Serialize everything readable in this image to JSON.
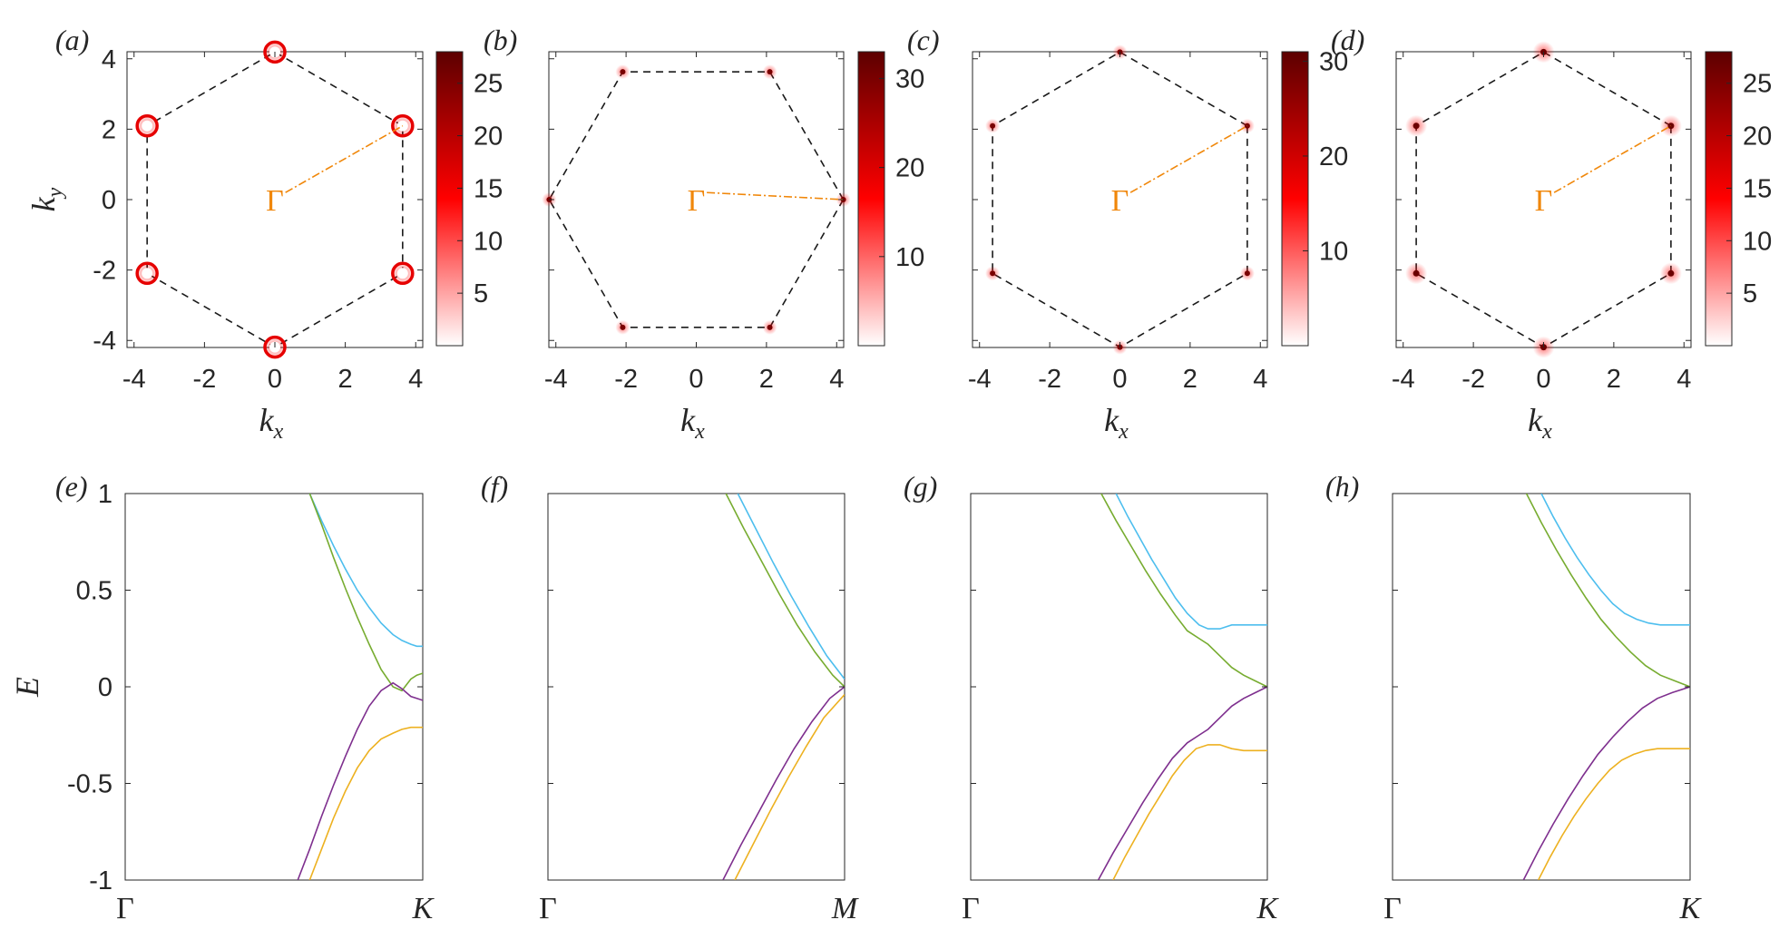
{
  "chart_data": [
    {
      "panel": "(a)",
      "type": "heatmap",
      "xlabel": "k_x",
      "ylabel": "k_y",
      "xlim": [
        -4.2,
        4.2
      ],
      "ylim": [
        -4.2,
        4.2
      ],
      "xticks": [
        "-4",
        "-2",
        "0",
        "2",
        "4"
      ],
      "yticks": [
        "4",
        "2",
        "0",
        "-2",
        "-4"
      ],
      "colorbar": {
        "min": 0,
        "max": 28,
        "ticks": [
          "25",
          "20",
          "15",
          "10",
          "5"
        ],
        "tick_values": [
          25,
          20,
          15,
          10,
          5
        ]
      },
      "brillouin_zone": "hexagon",
      "path_label": "Γ",
      "path_to": "K",
      "hotspot_style": "ring"
    },
    {
      "panel": "(b)",
      "type": "heatmap",
      "xlabel": "k_x",
      "ylabel": "",
      "xlim": [
        -4.2,
        4.2
      ],
      "ylim": [
        -4.2,
        4.2
      ],
      "xticks": [
        "-4",
        "-2",
        "0",
        "2",
        "4"
      ],
      "colorbar": {
        "min": 0,
        "max": 33,
        "ticks": [
          "30",
          "20",
          "10"
        ],
        "tick_values": [
          30,
          20,
          10
        ]
      },
      "brillouin_zone": "hexagon-rotated",
      "path_label": "Γ",
      "path_to": "M",
      "hotspot_style": "dot"
    },
    {
      "panel": "(c)",
      "type": "heatmap",
      "xlabel": "k_x",
      "ylabel": "",
      "xlim": [
        -4.2,
        4.2
      ],
      "ylim": [
        -4.2,
        4.2
      ],
      "xticks": [
        "-4",
        "-2",
        "0",
        "2",
        "4"
      ],
      "colorbar": {
        "min": 0,
        "max": 31,
        "ticks": [
          "30",
          "20",
          "10"
        ],
        "tick_values": [
          30,
          20,
          10
        ]
      },
      "brillouin_zone": "hexagon",
      "path_label": "Γ",
      "path_to": "K",
      "hotspot_style": "dot"
    },
    {
      "panel": "(d)",
      "type": "heatmap",
      "xlabel": "k_x",
      "ylabel": "",
      "xlim": [
        -4.2,
        4.2
      ],
      "ylim": [
        -4.2,
        4.2
      ],
      "xticks": [
        "-4",
        "-2",
        "0",
        "2",
        "4"
      ],
      "colorbar": {
        "min": 0,
        "max": 28,
        "ticks": [
          "25",
          "20",
          "15",
          "10",
          "5"
        ],
        "tick_values": [
          25,
          20,
          15,
          10,
          5
        ]
      },
      "brillouin_zone": "hexagon",
      "path_label": "Γ",
      "path_to": "K",
      "hotspot_style": "dot-glow"
    },
    {
      "panel": "(e)",
      "type": "line",
      "ylabel": "E",
      "ylim": [
        -1,
        1
      ],
      "yticks": [
        "1",
        "0.5",
        "0",
        "-0.5",
        "-1"
      ],
      "x_start_label": "Γ",
      "x_end_label": "K",
      "xlim": [
        0,
        1
      ],
      "series": [
        {
          "color": "#4dbeee",
          "x": [
            0.62,
            0.66,
            0.7,
            0.74,
            0.78,
            0.82,
            0.86,
            0.9,
            0.93,
            0.96,
            0.98,
            1.0
          ],
          "y": [
            1.0,
            0.86,
            0.73,
            0.61,
            0.5,
            0.41,
            0.33,
            0.27,
            0.24,
            0.22,
            0.21,
            0.21
          ]
        },
        {
          "color": "#77ac30",
          "x": [
            0.62,
            0.66,
            0.7,
            0.74,
            0.78,
            0.82,
            0.86,
            0.9,
            0.93,
            0.96,
            0.98,
            1.0
          ],
          "y": [
            1.0,
            0.84,
            0.67,
            0.51,
            0.36,
            0.22,
            0.09,
            0.0,
            -0.02,
            0.04,
            0.06,
            0.07
          ]
        },
        {
          "color": "#7e2f8e",
          "x": [
            0.58,
            0.62,
            0.66,
            0.7,
            0.74,
            0.78,
            0.82,
            0.86,
            0.9,
            0.93,
            0.96,
            0.98,
            1.0
          ],
          "y": [
            -1.0,
            -0.84,
            -0.67,
            -0.51,
            -0.36,
            -0.22,
            -0.1,
            -0.02,
            0.02,
            -0.01,
            -0.05,
            -0.06,
            -0.07
          ]
        },
        {
          "color": "#edb120",
          "x": [
            0.62,
            0.66,
            0.7,
            0.74,
            0.78,
            0.82,
            0.86,
            0.9,
            0.93,
            0.96,
            1.0
          ],
          "y": [
            -1.0,
            -0.84,
            -0.68,
            -0.54,
            -0.42,
            -0.33,
            -0.27,
            -0.24,
            -0.22,
            -0.21,
            -0.21
          ]
        }
      ]
    },
    {
      "panel": "(f)",
      "type": "line",
      "ylabel": "",
      "ylim": [
        -1,
        1
      ],
      "x_start_label": "Γ",
      "x_end_label": "M",
      "xlim": [
        0,
        1
      ],
      "series": [
        {
          "color": "#4dbeee",
          "x": [
            0.64,
            0.7,
            0.76,
            0.82,
            0.88,
            0.94,
            1.0
          ],
          "y": [
            1.0,
            0.82,
            0.64,
            0.47,
            0.31,
            0.16,
            0.04
          ]
        },
        {
          "color": "#77ac30",
          "x": [
            0.6,
            0.66,
            0.72,
            0.78,
            0.84,
            0.9,
            0.96,
            1.0
          ],
          "y": [
            1.0,
            0.82,
            0.65,
            0.48,
            0.32,
            0.18,
            0.06,
            0.0
          ]
        },
        {
          "color": "#7e2f8e",
          "x": [
            0.59,
            0.65,
            0.71,
            0.77,
            0.83,
            0.89,
            0.95,
            1.0
          ],
          "y": [
            -1.0,
            -0.82,
            -0.65,
            -0.48,
            -0.32,
            -0.18,
            -0.06,
            0.0
          ]
        },
        {
          "color": "#edb120",
          "x": [
            0.63,
            0.69,
            0.75,
            0.81,
            0.87,
            0.93,
            1.0
          ],
          "y": [
            -1.0,
            -0.82,
            -0.64,
            -0.47,
            -0.31,
            -0.16,
            -0.04
          ]
        }
      ]
    },
    {
      "panel": "(g)",
      "type": "line",
      "ylabel": "",
      "ylim": [
        -1,
        1
      ],
      "x_start_label": "Γ",
      "x_end_label": "K",
      "xlim": [
        0,
        1
      ],
      "series": [
        {
          "color": "#4dbeee",
          "x": [
            0.49,
            0.53,
            0.57,
            0.61,
            0.65,
            0.69,
            0.73,
            0.77,
            0.8,
            0.84,
            0.88,
            0.92,
            1.0
          ],
          "y": [
            1.0,
            0.88,
            0.77,
            0.66,
            0.56,
            0.46,
            0.38,
            0.32,
            0.3,
            0.3,
            0.32,
            0.32,
            0.32
          ]
        },
        {
          "color": "#77ac30",
          "x": [
            0.44,
            0.49,
            0.54,
            0.59,
            0.64,
            0.69,
            0.73,
            0.77,
            0.8,
            0.84,
            0.88,
            0.92,
            0.96,
            1.0
          ],
          "y": [
            1.0,
            0.86,
            0.73,
            0.6,
            0.48,
            0.37,
            0.29,
            0.25,
            0.22,
            0.16,
            0.1,
            0.06,
            0.03,
            0.0
          ]
        },
        {
          "color": "#7e2f8e",
          "x": [
            0.43,
            0.48,
            0.53,
            0.58,
            0.63,
            0.68,
            0.73,
            0.77,
            0.8,
            0.84,
            0.88,
            0.92,
            0.96,
            1.0
          ],
          "y": [
            -1.0,
            -0.86,
            -0.73,
            -0.6,
            -0.48,
            -0.37,
            -0.29,
            -0.25,
            -0.22,
            -0.16,
            -0.1,
            -0.06,
            -0.03,
            0.0
          ]
        },
        {
          "color": "#edb120",
          "x": [
            0.48,
            0.52,
            0.56,
            0.6,
            0.64,
            0.68,
            0.72,
            0.76,
            0.8,
            0.84,
            0.88,
            0.92,
            1.0
          ],
          "y": [
            -1.0,
            -0.88,
            -0.77,
            -0.66,
            -0.56,
            -0.46,
            -0.38,
            -0.32,
            -0.3,
            -0.3,
            -0.32,
            -0.33,
            -0.33
          ]
        }
      ]
    },
    {
      "panel": "(h)",
      "type": "line",
      "ylabel": "",
      "ylim": [
        -1,
        1
      ],
      "x_start_label": "Γ",
      "x_end_label": "K",
      "xlim": [
        0,
        1
      ],
      "series": [
        {
          "color": "#4dbeee",
          "x": [
            0.5,
            0.54,
            0.58,
            0.62,
            0.66,
            0.7,
            0.74,
            0.78,
            0.82,
            0.86,
            0.9,
            0.94,
            1.0
          ],
          "y": [
            1.0,
            0.88,
            0.77,
            0.67,
            0.58,
            0.5,
            0.43,
            0.38,
            0.35,
            0.33,
            0.32,
            0.32,
            0.32
          ]
        },
        {
          "color": "#77ac30",
          "x": [
            0.45,
            0.5,
            0.55,
            0.6,
            0.65,
            0.7,
            0.75,
            0.8,
            0.85,
            0.9,
            0.95,
            1.0
          ],
          "y": [
            1.0,
            0.85,
            0.71,
            0.58,
            0.46,
            0.35,
            0.26,
            0.18,
            0.11,
            0.06,
            0.03,
            0.0
          ]
        },
        {
          "color": "#7e2f8e",
          "x": [
            0.44,
            0.49,
            0.54,
            0.59,
            0.64,
            0.69,
            0.74,
            0.79,
            0.84,
            0.89,
            0.94,
            1.0
          ],
          "y": [
            -1.0,
            -0.85,
            -0.71,
            -0.58,
            -0.46,
            -0.35,
            -0.26,
            -0.18,
            -0.11,
            -0.06,
            -0.03,
            0.0
          ]
        },
        {
          "color": "#edb120",
          "x": [
            0.49,
            0.53,
            0.57,
            0.61,
            0.65,
            0.69,
            0.73,
            0.77,
            0.81,
            0.85,
            0.89,
            0.93,
            1.0
          ],
          "y": [
            -1.0,
            -0.88,
            -0.77,
            -0.67,
            -0.58,
            -0.5,
            -0.43,
            -0.38,
            -0.35,
            -0.33,
            -0.32,
            -0.32,
            -0.32
          ]
        }
      ]
    }
  ]
}
